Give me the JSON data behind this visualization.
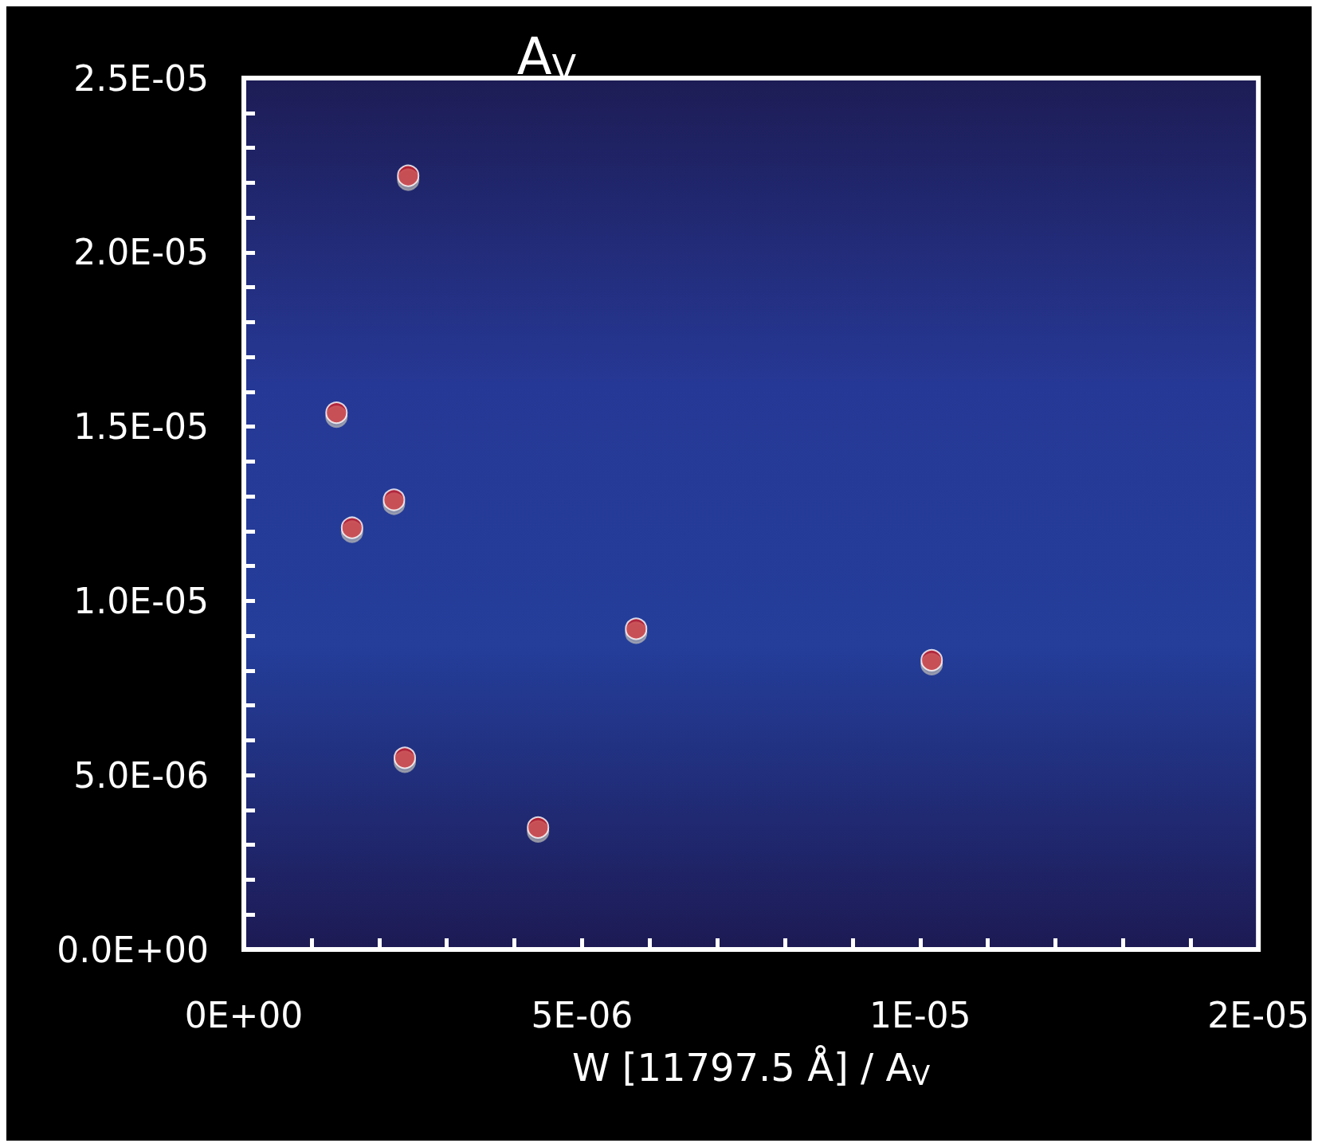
{
  "chart_data": {
    "type": "scatter",
    "ylabel": "A$_{V}$",
    "xlabel": "W [11797.5 Å] / A$_{V}$",
    "x": [
      2.43e-06,
      1.37e-06,
      2.22e-06,
      1.6e-06,
      5.8e-06,
      1.017e-05,
      2.38e-06,
      4.35e-06
    ],
    "values": [
      2.22e-05,
      1.54e-05,
      1.29e-05,
      1.21e-05,
      9.2e-06,
      8.3e-06,
      5.5e-06,
      3.5e-06
    ],
    "color": "#d42027",
    "marker": "circle",
    "xlim": [
      0,
      1.5e-05
    ],
    "ylim": [
      0,
      2.5e-05
    ],
    "xticks": [
      {
        "value": 0,
        "label": "0E+00"
      },
      {
        "value": 1e-06,
        "label": null
      },
      {
        "value": 2e-06,
        "label": null
      },
      {
        "value": 3e-06,
        "label": null
      },
      {
        "value": 4e-06,
        "label": null
      },
      {
        "value": 5e-06,
        "label": "5E-06"
      },
      {
        "value": 6e-06,
        "label": null
      },
      {
        "value": 7e-06,
        "label": null
      },
      {
        "value": 8e-06,
        "label": null
      },
      {
        "value": 9e-06,
        "label": null
      },
      {
        "value": 1e-05,
        "label": "1E-05"
      },
      {
        "value": 1.1e-05,
        "label": null
      },
      {
        "value": 1.2e-05,
        "label": null
      },
      {
        "value": 1.3e-05,
        "label": null
      },
      {
        "value": 1.4e-05,
        "label": null
      },
      {
        "value": 1.5e-05,
        "label": "2E-05"
      }
    ],
    "yticks": [
      {
        "value": 0,
        "label": "0.0E+00"
      },
      {
        "value": 1e-06,
        "label": null
      },
      {
        "value": 2e-06,
        "label": null
      },
      {
        "value": 3e-06,
        "label": null
      },
      {
        "value": 4e-06,
        "label": null
      },
      {
        "value": 5e-06,
        "label": "5.0E-06"
      },
      {
        "value": 6e-06,
        "label": null
      },
      {
        "value": 7e-06,
        "label": null
      },
      {
        "value": 8e-06,
        "label": null
      },
      {
        "value": 9e-06,
        "label": null
      },
      {
        "value": 1e-05,
        "label": "1.0E-05"
      },
      {
        "value": 1.1e-05,
        "label": null
      },
      {
        "value": 1.2e-05,
        "label": null
      },
      {
        "value": 1.3e-05,
        "label": null
      },
      {
        "value": 1.4e-05,
        "label": null
      },
      {
        "value": 1.5e-05,
        "label": "1.5E-05"
      },
      {
        "value": 1.6e-05,
        "label": null
      },
      {
        "value": 1.7e-05,
        "label": null
      },
      {
        "value": 1.8e-05,
        "label": null
      },
      {
        "value": 1.9e-05,
        "label": null
      },
      {
        "value": 2e-05,
        "label": "2.0E-05"
      },
      {
        "value": 2.1e-05,
        "label": null
      },
      {
        "value": 2.2e-05,
        "label": null
      },
      {
        "value": 2.3e-05,
        "label": null
      },
      {
        "value": 2.4e-05,
        "label": null
      },
      {
        "value": 2.5e-05,
        "label": "2.5E-05"
      }
    ]
  }
}
